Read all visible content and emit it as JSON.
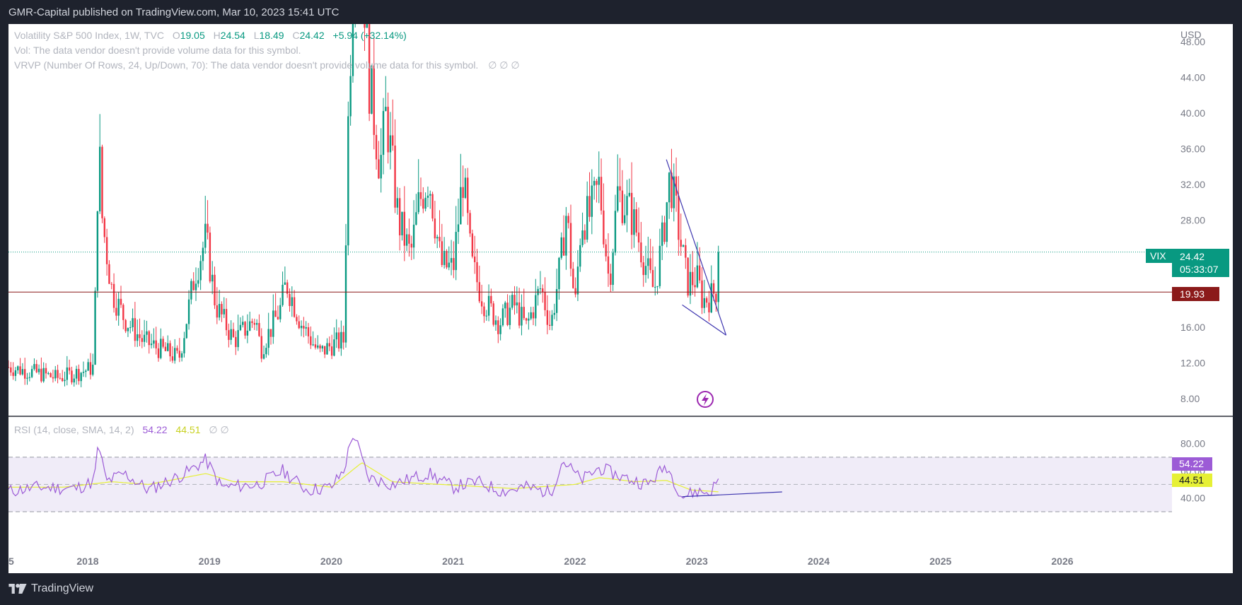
{
  "header": {
    "publisher": "GMR-Capital published on TradingView.com, Mar 10, 2023 15:41 UTC"
  },
  "footer": {
    "brand": "TradingView"
  },
  "colors": {
    "up": "#089981",
    "down": "#f23645",
    "rsi": "#9c5bd6",
    "rsi_ma": "#e6f035",
    "level_line": "#8b1a1a",
    "trend_line": "#3f37b0",
    "rsi_band": "#f0ecf8"
  },
  "legend": {
    "symbol": "Volatility S&P 500 Index, 1W, TVC",
    "o_label": "O",
    "o_value": "19.05",
    "h_label": "H",
    "h_value": "24.54",
    "l_label": "L",
    "l_value": "18.49",
    "c_label": "C",
    "c_value": "24.42",
    "change": "+5.94 (+32.14%)",
    "vol_line": "Vol: The data vendor doesn't provide volume data for this symbol.",
    "vrvp_line": "VRVP (Number Of Rows, 24, Up/Down, 70): The data vendor doesn't provide volume data for this symbol.",
    "vrvp_values": "∅  ∅  ∅",
    "rsi_label": "RSI (14, close, SMA, 14, 2)",
    "rsi_value": "54.22",
    "rsi_ma_value": "44.51",
    "rsi_extra": "∅  ∅"
  },
  "price_axis": {
    "currency": "USD",
    "ticks": [
      "48.00",
      "44.00",
      "40.00",
      "36.00",
      "32.00",
      "28.00",
      "16.00",
      "12.00",
      "8.00"
    ],
    "symbol_tag": "VIX",
    "last_price": "24.42",
    "countdown": "05:33:07",
    "level_price": "19.93"
  },
  "rsi_axis": {
    "ticks": [
      "80.00",
      "60.00",
      "40.00"
    ],
    "rsi_tag": "54.22",
    "rsi_ma_tag": "44.51"
  },
  "time_axis": {
    "labels": [
      "5",
      "2018",
      "2019",
      "2020",
      "2021",
      "2022",
      "2023",
      "2024",
      "2025",
      "2026"
    ]
  },
  "chart_data": {
    "type": "candlestick",
    "interval": "1W",
    "symbol": "VIX",
    "ylim": [
      6,
      50
    ],
    "x_range": [
      2017.35,
      2026.9
    ],
    "last_close": 24.42,
    "horizontal_level": 19.93,
    "trendlines": [
      {
        "points": [
          [
            2022.75,
            34.8
          ],
          [
            2023.24,
            15.1
          ]
        ]
      },
      {
        "points": [
          [
            2022.88,
            18.5
          ],
          [
            2023.24,
            15.1
          ]
        ]
      }
    ],
    "anchors": [
      [
        2017.35,
        11.5
      ],
      [
        2017.6,
        10.8
      ],
      [
        2017.75,
        10.3
      ],
      [
        2017.95,
        11.0
      ],
      [
        2018.05,
        11.5
      ],
      [
        2018.09,
        37.3
      ],
      [
        2018.12,
        28.0
      ],
      [
        2018.2,
        20.0
      ],
      [
        2018.3,
        17.0
      ],
      [
        2018.45,
        14.5
      ],
      [
        2018.6,
        13.5
      ],
      [
        2018.75,
        12.5
      ],
      [
        2018.8,
        16.0
      ],
      [
        2018.88,
        22.0
      ],
      [
        2018.97,
        26.0
      ],
      [
        2019.05,
        18.5
      ],
      [
        2019.2,
        14.5
      ],
      [
        2019.38,
        17.0
      ],
      [
        2019.42,
        13.5
      ],
      [
        2019.58,
        18.0
      ],
      [
        2019.63,
        21.0
      ],
      [
        2019.75,
        16.5
      ],
      [
        2019.9,
        13.0
      ],
      [
        2020.0,
        14.0
      ],
      [
        2020.1,
        14.5
      ],
      [
        2020.14,
        40.0
      ],
      [
        2020.2,
        66.0
      ],
      [
        2020.25,
        60.0
      ],
      [
        2020.3,
        45.0
      ],
      [
        2020.4,
        34.0
      ],
      [
        2020.45,
        40.0
      ],
      [
        2020.55,
        28.0
      ],
      [
        2020.65,
        24.0
      ],
      [
        2020.72,
        30.0
      ],
      [
        2020.8,
        33.0
      ],
      [
        2020.9,
        23.0
      ],
      [
        2021.0,
        22.5
      ],
      [
        2021.08,
        33.0
      ],
      [
        2021.15,
        23.0
      ],
      [
        2021.25,
        19.0
      ],
      [
        2021.38,
        16.5
      ],
      [
        2021.5,
        18.5
      ],
      [
        2021.6,
        16.0
      ],
      [
        2021.72,
        20.5
      ],
      [
        2021.8,
        16.0
      ],
      [
        2021.88,
        23.0
      ],
      [
        2021.93,
        29.0
      ],
      [
        2022.0,
        18.0
      ],
      [
        2022.05,
        28.0
      ],
      [
        2022.12,
        28.5
      ],
      [
        2022.2,
        32.0
      ],
      [
        2022.28,
        21.0
      ],
      [
        2022.35,
        31.0
      ],
      [
        2022.45,
        29.0
      ],
      [
        2022.5,
        27.0
      ],
      [
        2022.6,
        22.0
      ],
      [
        2022.65,
        20.0
      ],
      [
        2022.72,
        26.0
      ],
      [
        2022.78,
        33.0
      ],
      [
        2022.85,
        27.0
      ],
      [
        2022.92,
        21.0
      ],
      [
        2023.0,
        21.5
      ],
      [
        2023.05,
        19.0
      ],
      [
        2023.12,
        19.5
      ],
      [
        2023.17,
        20.5
      ],
      [
        2023.19,
        24.42
      ]
    ]
  },
  "rsi_data": {
    "ylim": [
      30,
      100
    ],
    "overbought": 70,
    "middle": 50,
    "oversold": 30,
    "rsi_anchors": [
      [
        2017.35,
        45
      ],
      [
        2017.6,
        48
      ],
      [
        2017.9,
        47
      ],
      [
        2018.05,
        52
      ],
      [
        2018.09,
        80
      ],
      [
        2018.15,
        52
      ],
      [
        2018.3,
        58
      ],
      [
        2018.5,
        46
      ],
      [
        2018.8,
        58
      ],
      [
        2018.97,
        68
      ],
      [
        2019.1,
        48
      ],
      [
        2019.4,
        50
      ],
      [
        2019.6,
        60
      ],
      [
        2019.8,
        46
      ],
      [
        2020.0,
        48
      ],
      [
        2020.1,
        60
      ],
      [
        2020.18,
        88
      ],
      [
        2020.3,
        55
      ],
      [
        2020.5,
        50
      ],
      [
        2020.8,
        58
      ],
      [
        2021.0,
        48
      ],
      [
        2021.2,
        52
      ],
      [
        2021.4,
        45
      ],
      [
        2021.6,
        48
      ],
      [
        2021.8,
        44
      ],
      [
        2021.9,
        68
      ],
      [
        2022.05,
        53
      ],
      [
        2022.2,
        62
      ],
      [
        2022.4,
        55
      ],
      [
        2022.6,
        50
      ],
      [
        2022.75,
        64
      ],
      [
        2022.88,
        41
      ],
      [
        2023.0,
        45
      ],
      [
        2023.1,
        44
      ],
      [
        2023.19,
        54.22
      ]
    ],
    "ma_anchors": [
      [
        2017.35,
        48
      ],
      [
        2017.8,
        48
      ],
      [
        2018.2,
        52
      ],
      [
        2018.5,
        50
      ],
      [
        2018.97,
        58
      ],
      [
        2019.2,
        52
      ],
      [
        2019.6,
        52
      ],
      [
        2020.0,
        48
      ],
      [
        2020.25,
        66
      ],
      [
        2020.5,
        52
      ],
      [
        2020.9,
        50
      ],
      [
        2021.5,
        47
      ],
      [
        2022.0,
        50
      ],
      [
        2022.2,
        55
      ],
      [
        2022.5,
        52
      ],
      [
        2022.75,
        53
      ],
      [
        2022.95,
        46
      ],
      [
        2023.19,
        44.51
      ]
    ],
    "rsi_trendline": [
      [
        2022.88,
        41
      ],
      [
        2023.7,
        44.5
      ]
    ]
  }
}
